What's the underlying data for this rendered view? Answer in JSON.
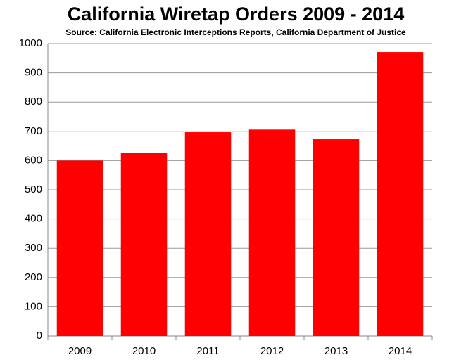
{
  "chart_data": {
    "type": "bar",
    "title": "California Wiretap Orders 2009 - 2014",
    "subtitle": "Source: California Electronic Interceptions Reports, California Department of Justice",
    "categories": [
      "2009",
      "2010",
      "2011",
      "2012",
      "2013",
      "2014"
    ],
    "values": [
      600,
      626,
      697,
      706,
      673,
      971
    ],
    "color": "#ff0000",
    "ylim": [
      0,
      1000
    ],
    "yticks": [
      0,
      100,
      200,
      300,
      400,
      500,
      600,
      700,
      800,
      900,
      1000
    ],
    "grid": true
  }
}
